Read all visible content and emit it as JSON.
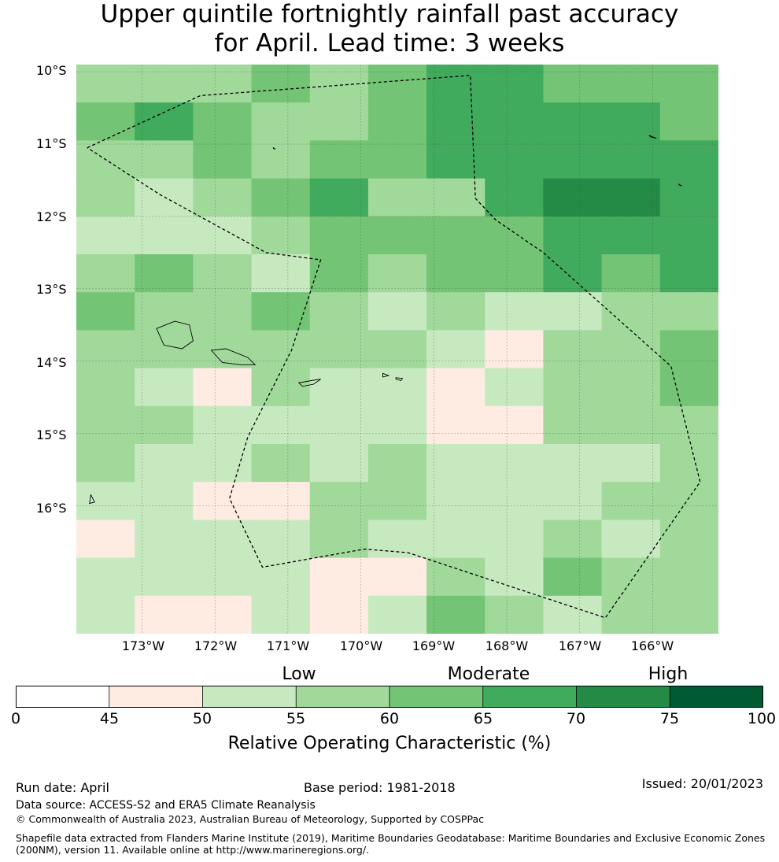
{
  "title": {
    "line1": "Upper quintile fortnightly rainfall past accuracy",
    "line2": "for April. Lead time: 3 weeks"
  },
  "map": {
    "lat_labels": [
      "10°S",
      "11°S",
      "12°S",
      "13°S",
      "14°S",
      "15°S",
      "16°S"
    ],
    "lon_labels": [
      "173°W",
      "172°W",
      "171°W",
      "170°W",
      "169°W",
      "168°W",
      "167°W",
      "166°W"
    ],
    "lat_range": [
      -17.77,
      -9.9
    ],
    "lon_range": [
      -173.9,
      -165.1
    ],
    "roc_grid": [
      [
        55,
        55,
        55,
        60,
        55,
        60,
        65,
        65,
        60,
        60,
        60
      ],
      [
        60,
        65,
        60,
        55,
        55,
        60,
        65,
        65,
        65,
        65,
        60
      ],
      [
        55,
        55,
        60,
        55,
        60,
        60,
        65,
        65,
        65,
        65,
        65
      ],
      [
        55,
        50,
        55,
        60,
        65,
        55,
        55,
        65,
        70,
        70,
        65
      ],
      [
        50,
        50,
        50,
        55,
        60,
        60,
        60,
        60,
        65,
        65,
        65
      ],
      [
        55,
        60,
        55,
        50,
        60,
        55,
        60,
        60,
        65,
        60,
        65
      ],
      [
        60,
        55,
        55,
        60,
        55,
        50,
        55,
        50,
        50,
        55,
        55
      ],
      [
        55,
        55,
        55,
        55,
        55,
        55,
        50,
        45,
        55,
        55,
        60
      ],
      [
        55,
        50,
        45,
        55,
        50,
        50,
        45,
        50,
        55,
        55,
        60
      ],
      [
        55,
        55,
        50,
        50,
        50,
        50,
        45,
        45,
        55,
        55,
        55
      ],
      [
        55,
        50,
        50,
        55,
        50,
        55,
        50,
        50,
        50,
        50,
        55
      ],
      [
        50,
        50,
        45,
        45,
        55,
        55,
        50,
        50,
        50,
        55,
        55
      ],
      [
        45,
        50,
        50,
        50,
        55,
        50,
        50,
        50,
        55,
        50,
        55
      ],
      [
        50,
        50,
        50,
        50,
        45,
        45,
        55,
        50,
        60,
        55,
        55
      ],
      [
        50,
        45,
        45,
        50,
        45,
        50,
        60,
        55,
        50,
        55,
        55
      ]
    ],
    "eez_boundary": [
      [
        -173.75,
        -11.05
      ],
      [
        -172.2,
        -10.33
      ],
      [
        -168.5,
        -10.05
      ],
      [
        -168.43,
        -11.75
      ],
      [
        -168.15,
        -12.05
      ],
      [
        -167.5,
        -12.5
      ],
      [
        -165.75,
        -14.07
      ],
      [
        -165.35,
        -15.67
      ],
      [
        -166.65,
        -17.55
      ],
      [
        -169.35,
        -16.65
      ],
      [
        -169.95,
        -16.6
      ],
      [
        -171.35,
        -16.85
      ],
      [
        -171.8,
        -15.9
      ],
      [
        -171.55,
        -15.05
      ],
      [
        -170.95,
        -13.85
      ],
      [
        -170.55,
        -12.6
      ],
      [
        -171.3,
        -12.5
      ],
      [
        -172.75,
        -11.7
      ],
      [
        -173.75,
        -11.05
      ]
    ],
    "islands": [
      [
        [
          -172.8,
          -13.55
        ],
        [
          -172.55,
          -13.45
        ],
        [
          -172.35,
          -13.5
        ],
        [
          -172.3,
          -13.72
        ],
        [
          -172.45,
          -13.83
        ],
        [
          -172.7,
          -13.78
        ],
        [
          -172.8,
          -13.55
        ]
      ],
      [
        [
          -172.05,
          -13.85
        ],
        [
          -171.85,
          -13.83
        ],
        [
          -171.55,
          -13.95
        ],
        [
          -171.45,
          -14.05
        ],
        [
          -171.65,
          -14.05
        ],
        [
          -171.9,
          -14.02
        ],
        [
          -172.05,
          -13.85
        ]
      ],
      [
        [
          -170.85,
          -14.3
        ],
        [
          -170.68,
          -14.27
        ],
        [
          -170.55,
          -14.25
        ],
        [
          -170.65,
          -14.32
        ],
        [
          -170.8,
          -14.35
        ],
        [
          -170.85,
          -14.3
        ]
      ],
      [
        [
          -169.7,
          -14.17
        ],
        [
          -169.62,
          -14.2
        ],
        [
          -169.7,
          -14.22
        ],
        [
          -169.7,
          -14.17
        ]
      ],
      [
        [
          -169.52,
          -14.23
        ],
        [
          -169.43,
          -14.24
        ],
        [
          -169.45,
          -14.27
        ],
        [
          -169.52,
          -14.25
        ],
        [
          -169.52,
          -14.23
        ]
      ],
      [
        [
          -171.2,
          -11.05
        ],
        [
          -171.17,
          -11.07
        ],
        [
          -171.2,
          -11.06
        ],
        [
          -171.2,
          -11.05
        ]
      ],
      [
        [
          -166.05,
          -10.88
        ],
        [
          -165.95,
          -10.92
        ],
        [
          -166.03,
          -10.9
        ],
        [
          -166.05,
          -10.88
        ]
      ],
      [
        [
          -165.65,
          -11.55
        ],
        [
          -165.6,
          -11.58
        ],
        [
          -165.63,
          -11.57
        ],
        [
          -165.65,
          -11.55
        ]
      ],
      [
        [
          -173.7,
          -15.85
        ],
        [
          -173.65,
          -15.95
        ],
        [
          -173.72,
          -15.97
        ],
        [
          -173.7,
          -15.85
        ]
      ]
    ]
  },
  "colorbar": {
    "categories": [
      "Low",
      "Moderate",
      "High"
    ],
    "ticks": [
      "0",
      "45",
      "50",
      "55",
      "60",
      "65",
      "70",
      "75",
      "100"
    ],
    "bins": [
      {
        "from": 0,
        "to": 45,
        "color": "#ffffff"
      },
      {
        "from": 45,
        "to": 50,
        "color": "#feebe2"
      },
      {
        "from": 50,
        "to": 55,
        "color": "#c7e9c0"
      },
      {
        "from": 55,
        "to": 60,
        "color": "#a1d99b"
      },
      {
        "from": 60,
        "to": 65,
        "color": "#74c476"
      },
      {
        "from": 65,
        "to": 70,
        "color": "#41ab5d"
      },
      {
        "from": 70,
        "to": 75,
        "color": "#238b45"
      },
      {
        "from": 75,
        "to": 100,
        "color": "#005a32"
      }
    ],
    "label": "Relative Operating Characteristic (%)"
  },
  "footer": {
    "run_date": "Run date: April",
    "base_period": "Base period: 1981-2018",
    "issued": "Issued: 20/01/2023",
    "data_source": "Data source: ACCESS-S2 and ERA5 Climate Reanalysis",
    "copyright": "© Commonwealth of Australia 2023, Australian Bureau of Meteorology, Supported by COSPPac",
    "shapefile_line1": "Shapefile data extracted from Flanders Marine Institute (2019), Maritime Boundaries Geodatabase: Maritime Boundaries and Exclusive Economic Zones",
    "shapefile_line2": "(200NM), version 11. Available online at http://www.marineregions.org/."
  }
}
